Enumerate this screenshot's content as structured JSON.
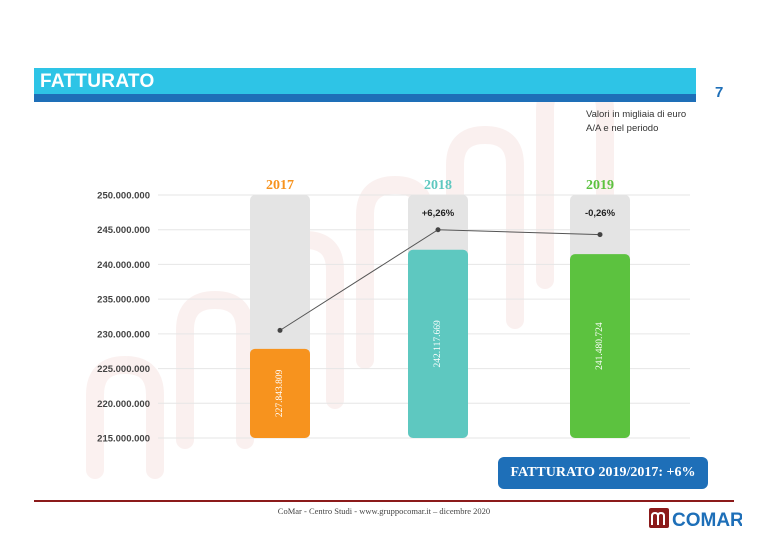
{
  "header": {
    "title": "FATTURATO",
    "page_number": "7",
    "units_line1": "Valori in migliaia di euro",
    "units_line2": "A/A e nel periodo"
  },
  "summary": {
    "label": "FATTURATO 2019/2017: +6%"
  },
  "footer": {
    "text": "CoMar - Centro Studi - www.gruppocomar.it – dicembre 2020"
  },
  "logo": {
    "text": "COMAR",
    "icon": "comar-logo-icon"
  },
  "colors": {
    "header_bar": "#2ec4e6",
    "header_underline": "#1e6fb8",
    "badge": "#1e6fb8",
    "footer_line": "#8b1a1a",
    "bar_2017": "#f7931e",
    "bar_2018": "#5ec8c0",
    "bar_2019": "#5cc23f",
    "watermark": "#c0392b"
  },
  "chart_data": {
    "type": "bar",
    "categories": [
      "2017",
      "2018",
      "2019"
    ],
    "values": [
      227843809,
      242117669,
      241480724
    ],
    "value_labels": [
      "227.843.809",
      "242.117.669",
      "241.480.724"
    ],
    "category_colors": [
      "#f7931e",
      "#5ec8c0",
      "#5cc23f"
    ],
    "line_points": [
      230500000,
      245000000,
      244300000
    ],
    "growth_labels": [
      "",
      "+6,26%",
      "-0,26%"
    ],
    "ylim": [
      215000000,
      250000000
    ],
    "y_ticks": [
      215000000,
      220000000,
      225000000,
      230000000,
      235000000,
      240000000,
      245000000,
      250000000
    ],
    "y_tick_labels": [
      "215.000.000",
      "220.000.000",
      "225.000.000",
      "230.000.000",
      "235.000.000",
      "240.000.000",
      "245.000.000",
      "250.000.000"
    ],
    "title": "",
    "xlabel": "",
    "ylabel": "",
    "grid": true
  }
}
